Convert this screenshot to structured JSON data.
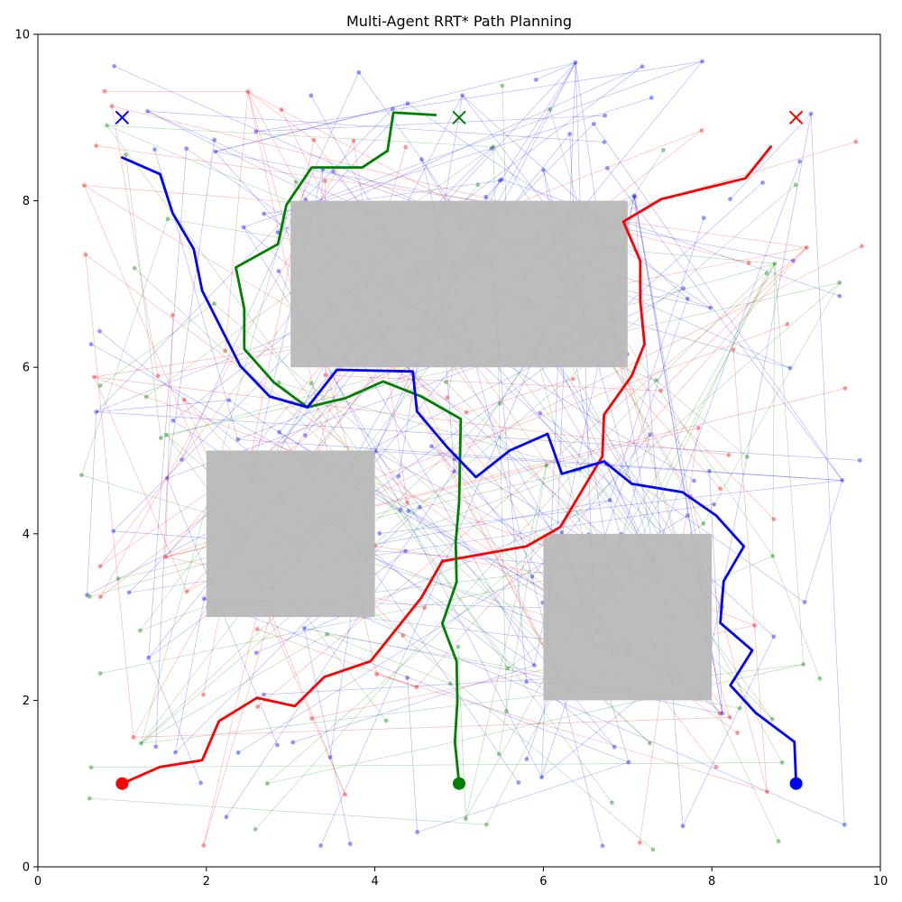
{
  "chart_data": {
    "type": "line",
    "title": "Multi-Agent RRT* Path Planning",
    "xlabel": "",
    "ylabel": "",
    "xlim": [
      0,
      10
    ],
    "ylim": [
      0,
      10
    ],
    "grid": false,
    "x_ticks": [
      "0",
      "2",
      "4",
      "6",
      "8",
      "10"
    ],
    "y_ticks": [
      "0",
      "2",
      "4",
      "6",
      "8",
      "10"
    ],
    "colors": {
      "red": "#ff0000",
      "green": "#008000",
      "blue": "#0000ff",
      "obstacle": "#b8b8b8"
    },
    "obstacles": [
      {
        "x0": 3,
        "y0": 6,
        "x1": 7,
        "y1": 8
      },
      {
        "x0": 2,
        "y0": 3,
        "x1": 4,
        "y1": 5
      },
      {
        "x0": 6,
        "y0": 2,
        "x1": 8,
        "y1": 4
      }
    ],
    "agents": [
      {
        "color": "red",
        "start": [
          1,
          1
        ],
        "goal": [
          9,
          9
        ],
        "path": [
          [
            1,
            1
          ],
          [
            1.45,
            1.2
          ],
          [
            1.95,
            1.28
          ],
          [
            2.15,
            1.75
          ],
          [
            2.6,
            2.03
          ],
          [
            3.05,
            1.93
          ],
          [
            3.4,
            2.28
          ],
          [
            3.95,
            2.47
          ],
          [
            4.55,
            3.23
          ],
          [
            4.8,
            3.67
          ],
          [
            5.8,
            3.85
          ],
          [
            6.2,
            4.08
          ],
          [
            6.7,
            4.93
          ],
          [
            6.72,
            5.43
          ],
          [
            7.05,
            5.9
          ],
          [
            7.2,
            6.28
          ],
          [
            7.15,
            6.8
          ],
          [
            7.15,
            7.28
          ],
          [
            6.95,
            7.75
          ],
          [
            7.4,
            8.02
          ],
          [
            8.4,
            8.27
          ],
          [
            8.7,
            8.65
          ]
        ]
      },
      {
        "color": "green",
        "start": [
          5,
          1
        ],
        "goal": [
          5,
          9
        ],
        "path": [
          [
            5,
            1
          ],
          [
            4.95,
            1.5
          ],
          [
            4.98,
            2
          ],
          [
            4.97,
            2.47
          ],
          [
            4.8,
            2.92
          ],
          [
            4.97,
            3.42
          ],
          [
            4.96,
            3.9
          ],
          [
            5.0,
            4.38
          ],
          [
            5.02,
            5.38
          ],
          [
            4.55,
            5.65
          ],
          [
            4.1,
            5.83
          ],
          [
            3.65,
            5.63
          ],
          [
            3.2,
            5.52
          ],
          [
            2.8,
            5.82
          ],
          [
            2.45,
            6.22
          ],
          [
            2.45,
            6.7
          ],
          [
            2.35,
            7.2
          ],
          [
            2.85,
            7.48
          ],
          [
            2.95,
            7.95
          ],
          [
            3.25,
            8.4
          ],
          [
            3.85,
            8.4
          ],
          [
            4.15,
            8.6
          ],
          [
            4.22,
            9.06
          ],
          [
            4.72,
            9.03
          ]
        ]
      },
      {
        "color": "blue",
        "start": [
          9,
          1
        ],
        "goal": [
          1,
          9
        ],
        "path": [
          [
            9,
            1
          ],
          [
            8.98,
            1.5
          ],
          [
            8.52,
            1.85
          ],
          [
            8.22,
            2.18
          ],
          [
            8.48,
            2.6
          ],
          [
            8.1,
            2.93
          ],
          [
            8.14,
            3.43
          ],
          [
            8.38,
            3.85
          ],
          [
            8.05,
            4.22
          ],
          [
            7.65,
            4.5
          ],
          [
            7.05,
            4.6
          ],
          [
            6.72,
            4.87
          ],
          [
            6.22,
            4.72
          ],
          [
            6.05,
            5.2
          ],
          [
            5.6,
            5.0
          ],
          [
            5.2,
            4.68
          ],
          [
            4.85,
            5.05
          ],
          [
            4.5,
            5.47
          ],
          [
            4.45,
            5.95
          ],
          [
            3.55,
            5.97
          ],
          [
            3.2,
            5.52
          ],
          [
            2.75,
            5.65
          ],
          [
            2.4,
            6.02
          ],
          [
            1.95,
            6.92
          ],
          [
            1.85,
            7.42
          ],
          [
            1.6,
            7.85
          ],
          [
            1.45,
            8.32
          ],
          [
            1.0,
            8.52
          ]
        ]
      }
    ]
  }
}
